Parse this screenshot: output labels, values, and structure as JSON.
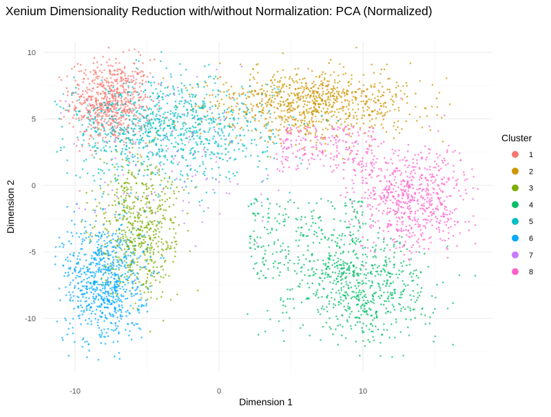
{
  "chart_data": {
    "type": "scatter",
    "title": "Xenium Dimensionality Reduction with/without Normalization: PCA (Normalized)",
    "xlabel": "Dimension 1",
    "ylabel": "Dimension 2",
    "xlim": [
      -12.2,
      19
    ],
    "ylim": [
      -14,
      10.8
    ],
    "xticks": [
      -10,
      0,
      10
    ],
    "xtick_labels": [
      "-10",
      "0",
      "10"
    ],
    "yticks": [
      -10,
      -5,
      0,
      5,
      10
    ],
    "ytick_labels": [
      "-10",
      "-5",
      "0",
      "5",
      "10"
    ],
    "grid": true,
    "legend": {
      "title": "Cluster",
      "placement": "right"
    },
    "clusters": [
      {
        "name": "1",
        "color": "#F8766D",
        "center": [
          -7.5,
          6.3
        ],
        "sd": [
          1.4,
          1.6
        ]
      },
      {
        "name": "2",
        "color": "#CD9600",
        "center": [
          6.5,
          6.2
        ],
        "sd": [
          3.6,
          1.3
        ]
      },
      {
        "name": "3",
        "color": "#7CAE00",
        "center": [
          -5.5,
          -3.2
        ],
        "sd": [
          1.4,
          2.6
        ]
      },
      {
        "name": "4",
        "color": "#00BE67",
        "center": [
          10,
          -7.8
        ],
        "sd": [
          2.4,
          2.0
        ]
      },
      {
        "name": "5",
        "color": "#00BFC4",
        "center": [
          -3.5,
          4.2
        ],
        "sd": [
          3.6,
          1.9
        ]
      },
      {
        "name": "6",
        "color": "#00A9FF",
        "center": [
          -8,
          -7.2
        ],
        "sd": [
          1.4,
          2.4
        ]
      },
      {
        "name": "7",
        "color": "#C77CFF",
        "center": [
          -3,
          2
        ],
        "sd": [
          3.8,
          3
        ]
      },
      {
        "name": "8",
        "color": "#FF61CC",
        "center": [
          13.5,
          -1
        ],
        "sd": [
          2,
          2
        ]
      }
    ]
  }
}
